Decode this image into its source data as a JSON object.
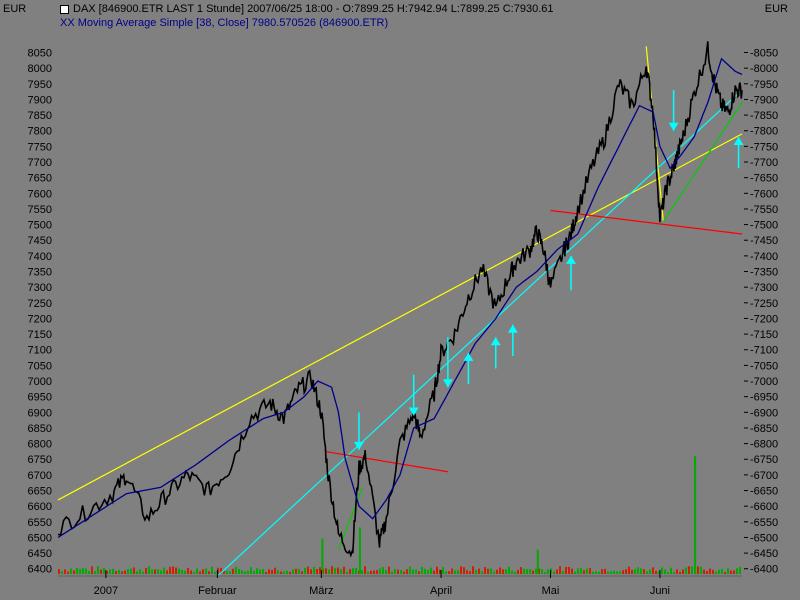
{
  "header": {
    "currency_left": "EUR",
    "currency_right": "EUR",
    "title_line": "DAX [846900.ETR LAST 1 Stunde] 2007/06/25 18:00 - O:7899.25 H:7942.94 L:7899.25 C:7930.61",
    "indicator_line": "XX Moving Average Simple [38, Close] 7980.570526 (846900.ETR)"
  },
  "colors": {
    "background": "#808080",
    "price": "#000000",
    "moving_average": "#00008b",
    "trendline_yellow": "#ffff00",
    "trendline_cyan": "#00ffff",
    "trendline_red": "#ff0000",
    "trendline_green": "#00cc00",
    "arrow": "#00ffff",
    "volume_red": "#cc2200",
    "volume_green": "#00aa00"
  },
  "chart_data": {
    "type": "line",
    "title": "DAX [846900.ETR LAST 1 Stunde]",
    "ylabel": "EUR",
    "ylim": [
      6380,
      8090
    ],
    "y_ticks": [
      6400,
      6450,
      6500,
      6550,
      6600,
      6650,
      6700,
      6750,
      6800,
      6850,
      6900,
      6950,
      7000,
      7050,
      7100,
      7150,
      7200,
      7250,
      7300,
      7350,
      7400,
      7450,
      7500,
      7550,
      7600,
      7650,
      7700,
      7750,
      7800,
      7850,
      7900,
      7950,
      8000,
      8050
    ],
    "x_labels": [
      "2007",
      "Februar",
      "März",
      "April",
      "Mai",
      "Juni"
    ],
    "x_label_pos": [
      0.07,
      0.233,
      0.385,
      0.56,
      0.72,
      0.88
    ],
    "grid": false,
    "series": [
      {
        "name": "DAX",
        "x": [
          0.0,
          0.04,
          0.08,
          0.1,
          0.13,
          0.16,
          0.19,
          0.22,
          0.25,
          0.28,
          0.31,
          0.33,
          0.35,
          0.37,
          0.385,
          0.395,
          0.41,
          0.43,
          0.44,
          0.45,
          0.47,
          0.48,
          0.5,
          0.52,
          0.53,
          0.55,
          0.56,
          0.58,
          0.6,
          0.62,
          0.64,
          0.66,
          0.67,
          0.69,
          0.7,
          0.71,
          0.72,
          0.74,
          0.75,
          0.76,
          0.78,
          0.8,
          0.82,
          0.84,
          0.86,
          0.87,
          0.88,
          0.89,
          0.9,
          0.905,
          0.915,
          0.93,
          0.95,
          0.96,
          0.97,
          0.98,
          0.99,
          1.0
        ],
        "values": [
          6530,
          6580,
          6640,
          6700,
          6560,
          6640,
          6700,
          6650,
          6720,
          6880,
          6930,
          6880,
          6970,
          7010,
          6900,
          6700,
          6510,
          6450,
          6720,
          6760,
          6480,
          6560,
          6800,
          6900,
          6820,
          6960,
          7090,
          7150,
          7270,
          7360,
          7230,
          7340,
          7380,
          7420,
          7480,
          7420,
          7300,
          7420,
          7470,
          7550,
          7680,
          7780,
          7950,
          7880,
          8010,
          7860,
          7520,
          7620,
          7680,
          7720,
          7790,
          7920,
          8060,
          7950,
          7880,
          7860,
          7930,
          7930
        ]
      },
      {
        "name": "Moving Average Simple [38, Close]",
        "x": [
          0.0,
          0.05,
          0.1,
          0.15,
          0.2,
          0.25,
          0.3,
          0.33,
          0.36,
          0.38,
          0.4,
          0.41,
          0.42,
          0.44,
          0.46,
          0.48,
          0.5,
          0.52,
          0.55,
          0.58,
          0.61,
          0.64,
          0.67,
          0.7,
          0.73,
          0.76,
          0.79,
          0.82,
          0.85,
          0.87,
          0.88,
          0.895,
          0.91,
          0.93,
          0.95,
          0.97,
          0.99,
          1.0
        ],
        "values": [
          6500,
          6570,
          6640,
          6660,
          6730,
          6810,
          6880,
          6900,
          6950,
          7000,
          6980,
          6900,
          6750,
          6600,
          6560,
          6620,
          6700,
          6850,
          6880,
          7000,
          7120,
          7200,
          7300,
          7350,
          7420,
          7470,
          7620,
          7750,
          7880,
          7860,
          7750,
          7680,
          7720,
          7780,
          7890,
          8030,
          7990,
          7980
        ]
      }
    ],
    "volume": {
      "name": "Volume",
      "spike_positions": [
        0.385,
        0.44,
        0.7,
        0.93
      ],
      "spike_values": [
        0.25,
        0.35,
        0.15,
        1.0
      ]
    },
    "trendlines": [
      {
        "name": "yellow-upper",
        "from": [
          0.0,
          6620
        ],
        "to": [
          1.0,
          7790
        ]
      },
      {
        "name": "yellow-steep",
        "from": [
          0.86,
          8070
        ],
        "to": [
          0.885,
          7510
        ]
      },
      {
        "name": "cyan-support",
        "from": [
          0.235,
          6380
        ],
        "to": [
          1.0,
          7930
        ]
      },
      {
        "name": "red-resistance-1",
        "from": [
          0.39,
          6775
        ],
        "to": [
          0.57,
          6710
        ]
      },
      {
        "name": "red-resistance-2",
        "from": [
          0.72,
          7545
        ],
        "to": [
          1.0,
          7470
        ]
      },
      {
        "name": "green-1",
        "from": [
          0.41,
          6460
        ],
        "to": [
          0.445,
          6660
        ]
      },
      {
        "name": "green-2",
        "from": [
          0.885,
          7510
        ],
        "to": [
          1.0,
          7890
        ]
      }
    ],
    "arrows": [
      {
        "x": 0.44,
        "from": 6900,
        "to": 6780,
        "direction": "down"
      },
      {
        "x": 0.52,
        "from": 7020,
        "to": 6890,
        "direction": "down"
      },
      {
        "x": 0.57,
        "from": 7140,
        "to": 6980,
        "direction": "down"
      },
      {
        "x": 0.6,
        "from": 6990,
        "to": 7090,
        "direction": "up"
      },
      {
        "x": 0.64,
        "from": 7040,
        "to": 7140,
        "direction": "up"
      },
      {
        "x": 0.665,
        "from": 7080,
        "to": 7180,
        "direction": "up"
      },
      {
        "x": 0.75,
        "from": 7290,
        "to": 7400,
        "direction": "up"
      },
      {
        "x": 0.9,
        "from": 7930,
        "to": 7800,
        "direction": "down"
      },
      {
        "x": 0.995,
        "from": 7680,
        "to": 7780,
        "direction": "up"
      }
    ]
  }
}
